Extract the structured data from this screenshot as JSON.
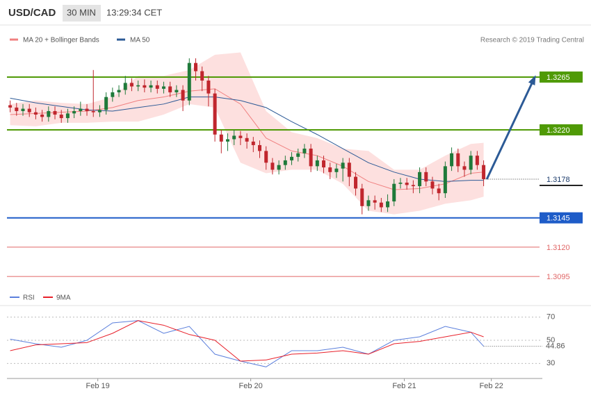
{
  "header": {
    "symbol": "USD/CAD",
    "interval": "30 MIN",
    "time": "13:29:34 CET",
    "credit": "Research © 2019 Trading Central"
  },
  "chart_data": [
    {
      "type": "candlestick",
      "xlim": [
        -0.5,
        83.5
      ],
      "ylim": [
        1.3088,
        1.3307
      ],
      "up_color": "#1f7a3a",
      "down_color": "#c0262d",
      "open": [
        1.3241,
        1.3239,
        1.3236,
        1.3238,
        1.3235,
        1.3233,
        1.3231,
        1.3236,
        1.3233,
        1.323,
        1.3234,
        1.3236,
        1.3238,
        1.3236,
        1.3235,
        1.3237,
        1.3248,
        1.3252,
        1.3254,
        1.326,
        1.3257,
        1.3258,
        1.3256,
        1.3258,
        1.3255,
        1.3257,
        1.3252,
        1.3254,
        1.3245,
        1.3277,
        1.327,
        1.3262,
        1.3251,
        1.3216,
        1.321,
        1.3212,
        1.3215,
        1.3213,
        1.321,
        1.3207,
        1.3202,
        1.3192,
        1.3186,
        1.319,
        1.3194,
        1.3197,
        1.32,
        1.3204,
        1.3189,
        1.3194,
        1.3188,
        1.3184,
        1.3187,
        1.3192,
        1.318,
        1.317,
        1.3155,
        1.316,
        1.3158,
        1.3154,
        1.3159,
        1.3174,
        1.3175,
        1.3173,
        1.3172,
        1.3184,
        1.3176,
        1.317,
        1.3166,
        1.3189,
        1.32,
        1.3189,
        1.3186,
        1.3198,
        1.319
      ],
      "high": [
        1.3245,
        1.3243,
        1.3242,
        1.3242,
        1.3239,
        1.3237,
        1.324,
        1.324,
        1.3237,
        1.3238,
        1.324,
        1.3244,
        1.3242,
        1.3271,
        1.3241,
        1.3252,
        1.3256,
        1.3258,
        1.3266,
        1.3264,
        1.3262,
        1.3263,
        1.3262,
        1.3262,
        1.3261,
        1.3261,
        1.3258,
        1.3258,
        1.3281,
        1.3281,
        1.3274,
        1.3266,
        1.3255,
        1.322,
        1.3217,
        1.322,
        1.3219,
        1.3217,
        1.3214,
        1.3211,
        1.3206,
        1.3196,
        1.3194,
        1.3198,
        1.3201,
        1.3204,
        1.3208,
        1.3208,
        1.3198,
        1.3198,
        1.3192,
        1.3191,
        1.3196,
        1.3196,
        1.3184,
        1.3174,
        1.3164,
        1.3164,
        1.3162,
        1.3165,
        1.3178,
        1.3179,
        1.3179,
        1.3177,
        1.3188,
        1.3188,
        1.318,
        1.3174,
        1.3193,
        1.3205,
        1.3204,
        1.3193,
        1.3202,
        1.3202,
        1.3194
      ],
      "low": [
        1.3235,
        1.3232,
        1.3232,
        1.3231,
        1.3229,
        1.3227,
        1.3227,
        1.3229,
        1.3226,
        1.3226,
        1.323,
        1.3232,
        1.3232,
        1.3231,
        1.3231,
        1.3233,
        1.3244,
        1.3248,
        1.325,
        1.3253,
        1.3253,
        1.3252,
        1.3252,
        1.3251,
        1.3251,
        1.3248,
        1.3248,
        1.3236,
        1.3241,
        1.3262,
        1.3253,
        1.324,
        1.321,
        1.32,
        1.3202,
        1.3207,
        1.3207,
        1.3204,
        1.3201,
        1.3196,
        1.3186,
        1.3182,
        1.3182,
        1.3186,
        1.319,
        1.3193,
        1.3196,
        1.3184,
        1.3185,
        1.3183,
        1.3178,
        1.3179,
        1.3176,
        1.3172,
        1.3164,
        1.3148,
        1.3151,
        1.3152,
        1.315,
        1.315,
        1.3155,
        1.317,
        1.3169,
        1.3166,
        1.3166,
        1.3172,
        1.3165,
        1.316,
        1.3162,
        1.3185,
        1.3184,
        1.318,
        1.3182,
        1.3186,
        1.3172
      ],
      "close": [
        1.3239,
        1.3236,
        1.3238,
        1.3235,
        1.3233,
        1.3231,
        1.3236,
        1.3233,
        1.323,
        1.3234,
        1.3236,
        1.3238,
        1.3236,
        1.3235,
        1.3237,
        1.3248,
        1.3252,
        1.3254,
        1.326,
        1.3257,
        1.3258,
        1.3256,
        1.3258,
        1.3255,
        1.3257,
        1.3252,
        1.3254,
        1.3245,
        1.3277,
        1.327,
        1.3262,
        1.3251,
        1.3216,
        1.321,
        1.3212,
        1.3215,
        1.3213,
        1.321,
        1.3207,
        1.3202,
        1.3192,
        1.3186,
        1.319,
        1.3194,
        1.3197,
        1.32,
        1.3204,
        1.3189,
        1.3194,
        1.3188,
        1.3184,
        1.3187,
        1.3192,
        1.318,
        1.317,
        1.3155,
        1.316,
        1.3158,
        1.3154,
        1.3159,
        1.3174,
        1.3175,
        1.3173,
        1.3172,
        1.3184,
        1.3176,
        1.317,
        1.3166,
        1.3189,
        1.32,
        1.3189,
        1.3186,
        1.3198,
        1.319,
        1.3178
      ],
      "bands": {
        "name": "MA 20 + Bollinger Bands",
        "color": "#f08080",
        "fill": "#fde0df",
        "x": [
          0,
          4,
          8,
          12,
          16,
          20,
          24,
          28,
          32,
          36,
          40,
          44,
          48,
          52,
          56,
          60,
          64,
          68,
          72,
          74
        ],
        "upper": [
          1.3242,
          1.3245,
          1.3243,
          1.3242,
          1.3248,
          1.3266,
          1.3266,
          1.3271,
          1.3284,
          1.3286,
          1.3236,
          1.3218,
          1.3213,
          1.3204,
          1.3202,
          1.3186,
          1.3186,
          1.3198,
          1.3208,
          1.3209
        ],
        "mid": [
          1.3233,
          1.3234,
          1.3235,
          1.3236,
          1.3239,
          1.3245,
          1.3248,
          1.3253,
          1.3255,
          1.3242,
          1.3213,
          1.3202,
          1.3198,
          1.3189,
          1.3176,
          1.3169,
          1.317,
          1.3174,
          1.3183,
          1.3184
        ],
        "lower": [
          1.3224,
          1.3223,
          1.3226,
          1.3226,
          1.3227,
          1.3227,
          1.3233,
          1.3242,
          1.3239,
          1.3192,
          1.3183,
          1.3186,
          1.3186,
          1.3174,
          1.3151,
          1.3148,
          1.3151,
          1.3157,
          1.316,
          1.3163
        ]
      },
      "series": [
        {
          "name": "MA 50",
          "color": "#2c5a96",
          "x": [
            0,
            4,
            8,
            12,
            16,
            20,
            24,
            28,
            32,
            36,
            40,
            44,
            48,
            52,
            56,
            60,
            64,
            68,
            72,
            74
          ],
          "values": [
            1.3247,
            1.3243,
            1.324,
            1.3237,
            1.3236,
            1.3239,
            1.3242,
            1.3248,
            1.3248,
            1.3245,
            1.3239,
            1.3227,
            1.3216,
            1.3204,
            1.3192,
            1.3184,
            1.3178,
            1.3176,
            1.3177,
            1.3177
          ]
        }
      ],
      "levels": [
        {
          "value": 1.3265,
          "color": "#4f9a06",
          "style": "filled"
        },
        {
          "value": 1.322,
          "label": "1.3220",
          "color": "#4f9a06",
          "style": "filled"
        },
        {
          "value": 1.3145,
          "color": "#1e5cc8",
          "style": "filled"
        },
        {
          "value": 1.312,
          "label": "1.3120",
          "color": "#e06666",
          "style": "plain"
        },
        {
          "value": 1.3095,
          "color": "#e06666",
          "style": "plain"
        }
      ],
      "forecast": {
        "color": "#2c5a96",
        "x": [
          74.5,
          82
        ],
        "values": [
          1.3178,
          1.3265
        ]
      }
    },
    {
      "type": "line",
      "xlim": [
        -0.5,
        83.5
      ],
      "ylim": [
        20,
        80
      ],
      "yticks": [
        70,
        50,
        30
      ],
      "xticks": [
        {
          "value": 13.7,
          "label": "Feb 19"
        },
        {
          "value": 37.6,
          "label": "Feb 20"
        },
        {
          "value": 61.6,
          "label": "Feb 21"
        },
        {
          "value": 75.2,
          "label": "Feb 22"
        }
      ],
      "grid": true,
      "series": [
        {
          "name": "RSI",
          "color": "#5b7fdc",
          "x": [
            0,
            4,
            8,
            12,
            16,
            20,
            24,
            28,
            32,
            36,
            40,
            44,
            48,
            52,
            56,
            60,
            64,
            68,
            72,
            74
          ],
          "values": [
            51,
            47,
            44,
            50,
            65,
            67,
            56,
            62,
            38,
            32,
            27,
            41,
            41,
            44,
            38,
            50,
            53,
            62,
            57,
            44.86
          ]
        },
        {
          "name": "9MA",
          "color": "#e8202a",
          "x": [
            0,
            4,
            8,
            12,
            16,
            20,
            24,
            28,
            32,
            36,
            40,
            44,
            48,
            52,
            56,
            60,
            64,
            68,
            72,
            74
          ],
          "values": [
            41,
            46,
            47,
            48,
            56,
            67,
            63,
            55,
            50,
            32,
            33,
            38,
            39,
            41,
            38,
            47,
            49,
            53,
            57,
            53
          ]
        }
      ]
    }
  ]
}
